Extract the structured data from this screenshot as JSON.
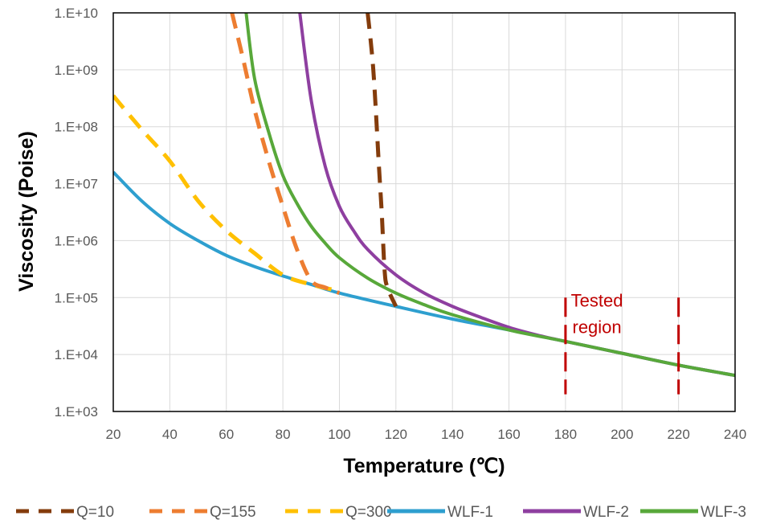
{
  "chart_data": {
    "type": "line",
    "title": "",
    "xlabel": "Temperature (℃)",
    "ylabel": "Viscosity (Poise)",
    "xlim": [
      20,
      240
    ],
    "ylim": [
      1000,
      10000000000
    ],
    "y_scale": "log",
    "grid": true,
    "legend_position": "bottom",
    "x_ticks": [
      20,
      40,
      60,
      80,
      100,
      120,
      140,
      160,
      180,
      200,
      220,
      240
    ],
    "x_tick_labels": [
      "20",
      "40",
      "60",
      "80",
      "100",
      "120",
      "140",
      "160",
      "180",
      "200",
      "220",
      "240"
    ],
    "y_ticks": [
      1000,
      10000,
      100000,
      1000000,
      10000000,
      100000000,
      1000000000,
      10000000000
    ],
    "y_tick_labels": [
      "1.E+03",
      "1.E+04",
      "1.E+05",
      "1.E+06",
      "1.E+07",
      "1.E+08",
      "1.E+09",
      "1.E+10"
    ],
    "series": [
      {
        "name": "Q=10",
        "color": "#843c0c",
        "dashed": true,
        "x": [
          110,
          112,
          114,
          115,
          116,
          117,
          120
        ],
        "y": [
          10000000000,
          1000000000,
          20000000,
          3000000,
          300000,
          150000,
          70000
        ]
      },
      {
        "name": "Q=155",
        "color": "#ed7d31",
        "dashed": true,
        "x": [
          62,
          66,
          70,
          75,
          80,
          85,
          90,
          95,
          100
        ],
        "y": [
          10000000000,
          1500000000,
          200000000,
          25000000,
          4000000,
          700000,
          200000,
          150000,
          120000
        ]
      },
      {
        "name": "Q=300",
        "color": "#ffc000",
        "dashed": true,
        "x": [
          20,
          30,
          40,
          50,
          60,
          70,
          80,
          90,
          100
        ],
        "y": [
          350000000,
          90000000,
          25000000,
          5000000,
          1500000,
          600000,
          250000,
          170000,
          130000
        ]
      },
      {
        "name": "WLF-1",
        "color": "#2e9fcf",
        "dashed": false,
        "x": [
          20,
          30,
          40,
          50,
          60,
          70,
          80,
          90,
          100,
          120,
          140,
          160,
          180,
          200,
          220,
          240
        ],
        "y": [
          16000000,
          5000000,
          2000000,
          1000000,
          550000,
          350000,
          240000,
          170000,
          120000,
          70000,
          42000,
          27000,
          17000,
          10500,
          6500,
          4300
        ]
      },
      {
        "name": "WLF-2",
        "color": "#8e3fa0",
        "dashed": false,
        "x": [
          86,
          90,
          95,
          100,
          105,
          110,
          120,
          130,
          140,
          150,
          160,
          170,
          180,
          200,
          220,
          240
        ],
        "y": [
          10000000000,
          300000000,
          20000000,
          4000000,
          1500000,
          700000,
          250000,
          120000,
          70000,
          45000,
          30000,
          22000,
          17000,
          10500,
          6500,
          4300
        ]
      },
      {
        "name": "WLF-3",
        "color": "#58a83a",
        "dashed": false,
        "x": [
          67,
          70,
          75,
          80,
          85,
          90,
          95,
          100,
          110,
          120,
          130,
          140,
          160,
          180,
          200,
          220,
          240
        ],
        "y": [
          10000000000,
          700000000,
          80000000,
          14000000,
          4500000,
          1800000,
          900000,
          500000,
          220000,
          120000,
          75000,
          50000,
          27000,
          17000,
          10500,
          6500,
          4300
        ]
      }
    ],
    "annotations": [
      {
        "text_lines": [
          "Tested",
          "region"
        ],
        "x": 190,
        "y": 70000
      },
      {
        "type": "vertical-dashed-line",
        "x": 180,
        "y_range": [
          2000,
          100000
        ],
        "color": "#c00000"
      },
      {
        "type": "vertical-dashed-line",
        "x": 220,
        "y_range": [
          2000,
          100000
        ],
        "color": "#c00000"
      }
    ]
  }
}
